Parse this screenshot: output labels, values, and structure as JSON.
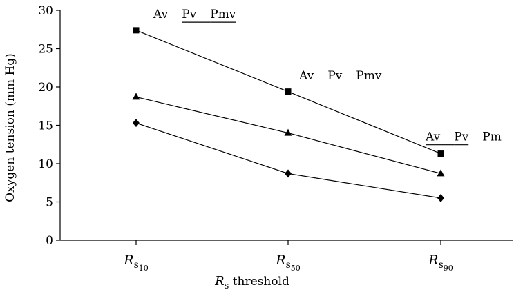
{
  "chart_data": {
    "type": "line",
    "title": "",
    "ylabel": "Oxygen tension (mm Hg)",
    "xlabel": {
      "main": "R",
      "sub": "s",
      "rest": " threshold"
    },
    "ylim": [
      0,
      30
    ],
    "yticks": [
      0,
      5,
      10,
      15,
      20,
      25,
      30
    ],
    "categories": [
      {
        "main": "R",
        "sub": "s",
        "subsub": "10"
      },
      {
        "main": "R",
        "sub": "s",
        "subsub": "50"
      },
      {
        "main": "R",
        "sub": "s",
        "subsub": "90"
      }
    ],
    "series": [
      {
        "marker": "square",
        "values": [
          27.4,
          19.4,
          11.3
        ]
      },
      {
        "marker": "triangle",
        "values": [
          18.7,
          14.0,
          8.7
        ]
      },
      {
        "marker": "diamond",
        "values": [
          15.3,
          8.7,
          5.5
        ]
      }
    ],
    "annotations": [
      {
        "category_index": 0,
        "value": 29.0,
        "items": [
          {
            "text": "Av",
            "underline": false
          },
          {
            "text": "Pv",
            "underline": true
          },
          {
            "text": "Pmv",
            "underline": true
          }
        ]
      },
      {
        "category_index": 1,
        "value": 21.0,
        "items": [
          {
            "text": "Av",
            "underline": false
          },
          {
            "text": "Pv",
            "underline": false
          },
          {
            "text": "Pmv",
            "underline": false
          }
        ]
      },
      {
        "category_index": 2,
        "value": 13.0,
        "items": [
          {
            "text": "Av",
            "underline": true
          },
          {
            "text": "Pv",
            "underline": true
          },
          {
            "text": "Pm",
            "underline": false
          }
        ]
      }
    ],
    "grid": false,
    "legend": "none",
    "colors": {
      "line": "#000000",
      "marker": "#000000",
      "axis": "#000000"
    }
  }
}
